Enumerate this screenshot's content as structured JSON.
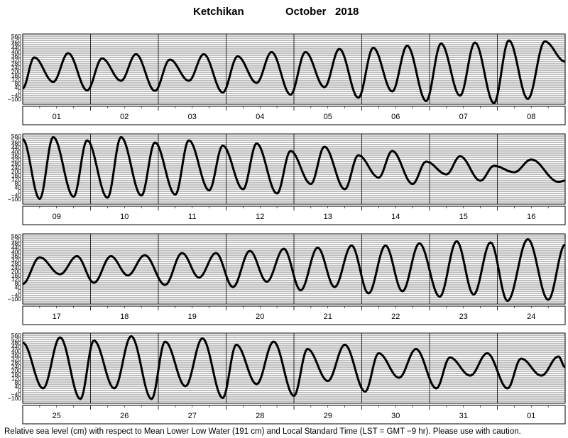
{
  "header": {
    "station": "Ketchikan",
    "month_year": "October   2018"
  },
  "footer": {
    "note": "Relative sea level (cm) with respect to Mean Lower Low Water (191 cm) and Local Standard Time (LST = GMT −9 hr). Please use with caution."
  },
  "chart_data": {
    "type": "line",
    "ylim": [
      -100,
      560
    ],
    "y_tick_labels": [
      "560",
      "520",
      "480",
      "440",
      "400",
      "360",
      "320",
      "280",
      "240",
      "200",
      "160",
      "120",
      "80",
      "40",
      "0",
      "−40",
      "−100"
    ],
    "gridlines": true,
    "panels": [
      {
        "days": [
          "01",
          "02",
          "03",
          "04",
          "05",
          "06",
          "07",
          "08"
        ],
        "extrema": [
          [
            0,
            50
          ],
          [
            0.17,
            340
          ],
          [
            0.45,
            110
          ],
          [
            0.67,
            380
          ],
          [
            0.95,
            30
          ],
          [
            1.17,
            330
          ],
          [
            1.45,
            120
          ],
          [
            1.67,
            370
          ],
          [
            1.95,
            25
          ],
          [
            2.17,
            320
          ],
          [
            2.45,
            120
          ],
          [
            2.67,
            370
          ],
          [
            2.95,
            10
          ],
          [
            3.17,
            350
          ],
          [
            3.45,
            100
          ],
          [
            3.67,
            390
          ],
          [
            3.95,
            -10
          ],
          [
            4.17,
            390
          ],
          [
            4.45,
            60
          ],
          [
            4.67,
            420
          ],
          [
            4.95,
            -40
          ],
          [
            5.17,
            430
          ],
          [
            5.45,
            20
          ],
          [
            5.67,
            450
          ],
          [
            5.95,
            -70
          ],
          [
            6.17,
            470
          ],
          [
            6.45,
            -20
          ],
          [
            6.67,
            480
          ],
          [
            6.95,
            -90
          ],
          [
            7.17,
            500
          ],
          [
            7.45,
            -50
          ],
          [
            7.7,
            490
          ],
          [
            8,
            300
          ]
        ]
      },
      {
        "days": [
          "09",
          "10",
          "11",
          "12",
          "13",
          "14",
          "15",
          "16"
        ],
        "extrema": [
          [
            0,
            510
          ],
          [
            0.25,
            -50
          ],
          [
            0.45,
            530
          ],
          [
            0.75,
            -30
          ],
          [
            0.95,
            500
          ],
          [
            1.25,
            -40
          ],
          [
            1.45,
            530
          ],
          [
            1.75,
            -20
          ],
          [
            1.95,
            480
          ],
          [
            2.25,
            -10
          ],
          [
            2.45,
            500
          ],
          [
            2.75,
            30
          ],
          [
            2.95,
            450
          ],
          [
            3.25,
            40
          ],
          [
            3.45,
            470
          ],
          [
            3.75,
            0
          ],
          [
            3.95,
            400
          ],
          [
            4.25,
            90
          ],
          [
            4.45,
            440
          ],
          [
            4.75,
            40
          ],
          [
            4.95,
            360
          ],
          [
            5.25,
            150
          ],
          [
            5.45,
            400
          ],
          [
            5.75,
            90
          ],
          [
            5.95,
            300
          ],
          [
            6.25,
            180
          ],
          [
            6.45,
            350
          ],
          [
            6.75,
            120
          ],
          [
            6.95,
            260
          ],
          [
            7.25,
            200
          ],
          [
            7.5,
            320
          ],
          [
            7.9,
            110
          ],
          [
            8,
            120
          ]
        ]
      },
      {
        "days": [
          "17",
          "18",
          "19",
          "20",
          "21",
          "22",
          "23",
          "24"
        ],
        "extrema": [
          [
            0,
            90
          ],
          [
            0.25,
            340
          ],
          [
            0.55,
            180
          ],
          [
            0.8,
            350
          ],
          [
            1.05,
            100
          ],
          [
            1.3,
            350
          ],
          [
            1.55,
            170
          ],
          [
            1.8,
            360
          ],
          [
            2.1,
            80
          ],
          [
            2.35,
            380
          ],
          [
            2.6,
            150
          ],
          [
            2.85,
            380
          ],
          [
            3.1,
            60
          ],
          [
            3.35,
            400
          ],
          [
            3.6,
            110
          ],
          [
            3.85,
            420
          ],
          [
            4.1,
            30
          ],
          [
            4.35,
            430
          ],
          [
            4.6,
            60
          ],
          [
            4.85,
            450
          ],
          [
            5.1,
            0
          ],
          [
            5.35,
            450
          ],
          [
            5.6,
            20
          ],
          [
            5.85,
            470
          ],
          [
            6.15,
            -30
          ],
          [
            6.4,
            490
          ],
          [
            6.65,
            -10
          ],
          [
            6.9,
            480
          ],
          [
            7.15,
            -70
          ],
          [
            7.45,
            510
          ],
          [
            7.75,
            -60
          ],
          [
            8,
            460
          ]
        ]
      },
      {
        "days": [
          "25",
          "26",
          "27",
          "28",
          "29",
          "30",
          "31",
          "01"
        ],
        "extrema": [
          [
            0,
            470
          ],
          [
            0.3,
            40
          ],
          [
            0.55,
            520
          ],
          [
            0.85,
            -60
          ],
          [
            1.05,
            490
          ],
          [
            1.35,
            40
          ],
          [
            1.6,
            530
          ],
          [
            1.9,
            -60
          ],
          [
            2.1,
            480
          ],
          [
            2.4,
            60
          ],
          [
            2.65,
            510
          ],
          [
            2.95,
            -50
          ],
          [
            3.15,
            450
          ],
          [
            3.45,
            80
          ],
          [
            3.7,
            480
          ],
          [
            4.0,
            -30
          ],
          [
            4.2,
            410
          ],
          [
            4.5,
            110
          ],
          [
            4.75,
            450
          ],
          [
            5.05,
            10
          ],
          [
            5.25,
            370
          ],
          [
            5.55,
            140
          ],
          [
            5.8,
            410
          ],
          [
            6.1,
            40
          ],
          [
            6.3,
            330
          ],
          [
            6.6,
            160
          ],
          [
            6.85,
            370
          ],
          [
            7.15,
            40
          ],
          [
            7.35,
            320
          ],
          [
            7.65,
            160
          ],
          [
            7.9,
            340
          ],
          [
            8,
            240
          ]
        ]
      }
    ]
  }
}
